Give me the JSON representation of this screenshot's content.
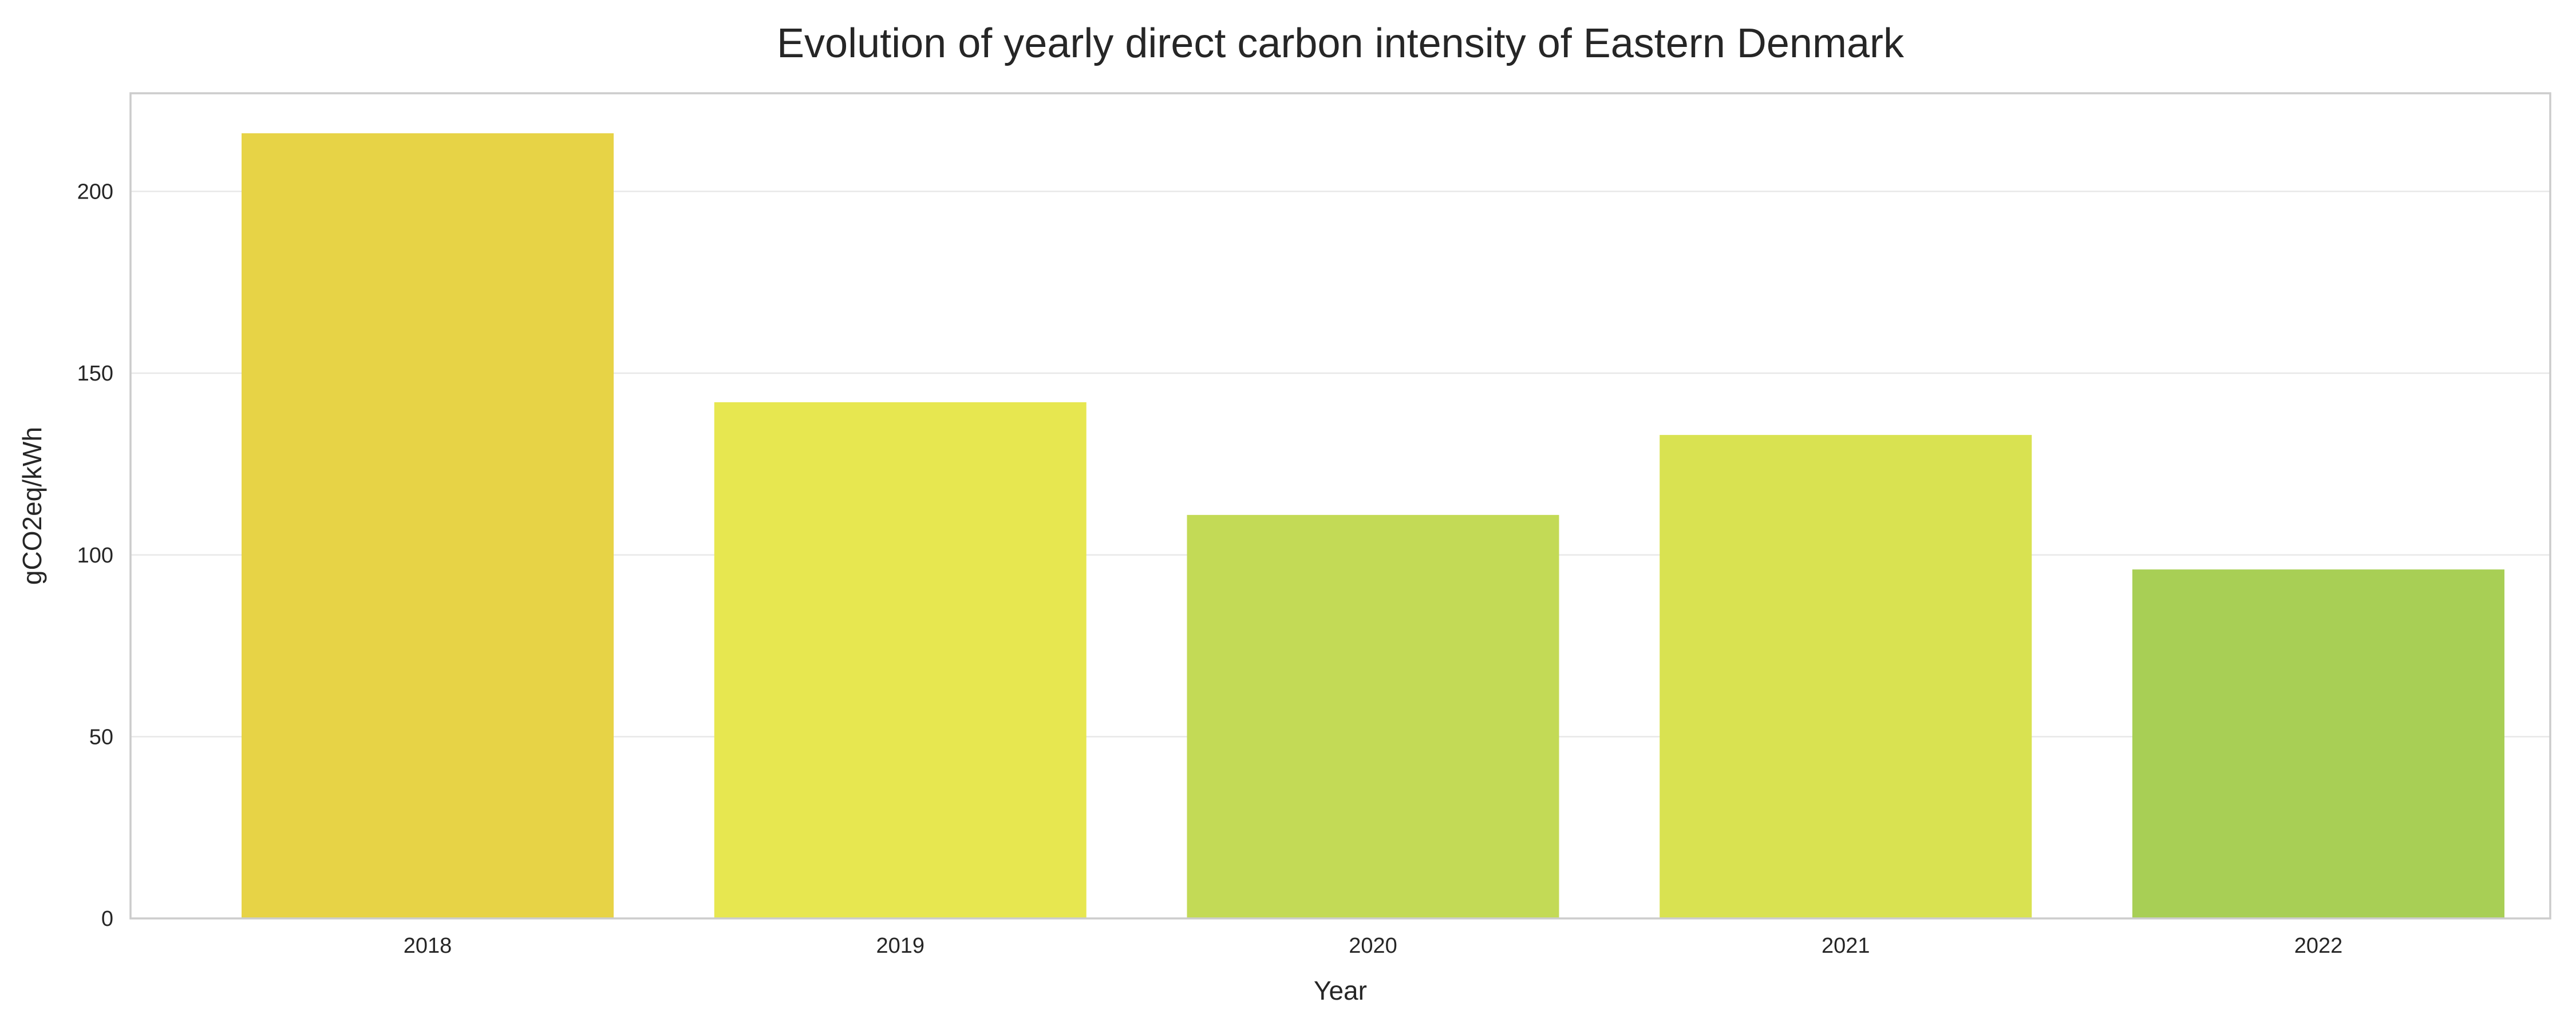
{
  "chart_data": {
    "type": "bar",
    "title": "Evolution of yearly direct carbon intensity of Eastern Denmark",
    "xlabel": "Year",
    "ylabel": "gCO2eq/kWh",
    "categories": [
      "2018",
      "2019",
      "2020",
      "2021",
      "2022"
    ],
    "values": [
      216,
      142,
      111,
      133,
      96
    ],
    "bar_colors": [
      "#e7d346",
      "#e7e750",
      "#c3da56",
      "#d9e251",
      "#a8cf55"
    ],
    "ylim": [
      0,
      227
    ],
    "yticks": [
      0,
      50,
      100,
      150,
      200
    ],
    "grid": "horizontal",
    "legend": "none"
  }
}
